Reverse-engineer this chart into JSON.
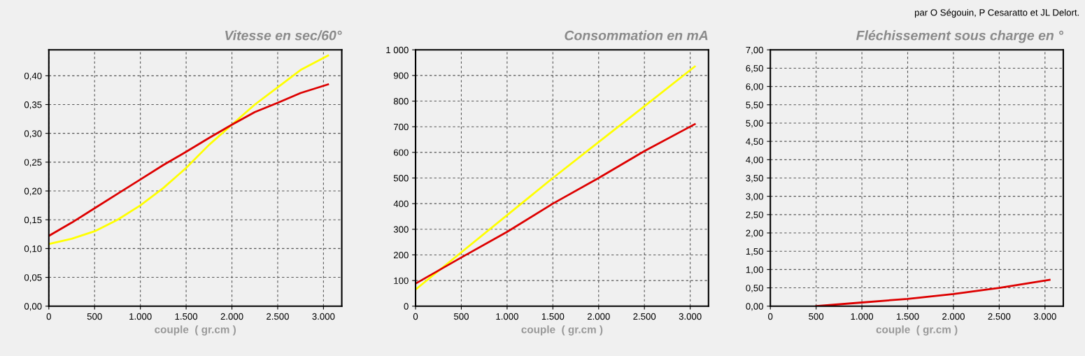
{
  "chart_data": [
    {
      "type": "line",
      "title": "Vitesse en sec/60°",
      "xlabel": "couple  ( gr.cm )",
      "grid": true,
      "line_style": "solid",
      "xlim": [
        0,
        3200
      ],
      "xticks": [
        0,
        {
          "value": 500,
          "label": "500"
        },
        {
          "value": 1000,
          "label": "1.000"
        },
        {
          "value": 1500,
          "label": "1.500"
        },
        {
          "value": 2000,
          "label": "2.000"
        },
        {
          "value": 2500,
          "label": "2.500"
        },
        {
          "value": 3000,
          "label": "3.000"
        }
      ],
      "ylim": [
        0,
        0.445
      ],
      "yticks": [
        {
          "value": 0,
          "label": "0,00"
        },
        {
          "value": 0.05,
          "label": "0,05"
        },
        {
          "value": 0.1,
          "label": "0,10"
        },
        {
          "value": 0.15,
          "label": "0,15"
        },
        {
          "value": 0.2,
          "label": "0,20"
        },
        {
          "value": 0.25,
          "label": "0,25"
        },
        {
          "value": 0.3,
          "label": "0,30"
        },
        {
          "value": 0.35,
          "label": "0,35"
        },
        {
          "value": 0.4,
          "label": "0,40"
        }
      ],
      "series": [
        {
          "color": "#ffff00",
          "x": [
            0,
            250,
            500,
            750,
            1000,
            1250,
            1500,
            1750,
            2000,
            2250,
            2500,
            2750,
            3050
          ],
          "values": [
            0.108,
            0.117,
            0.13,
            0.15,
            0.175,
            0.205,
            0.24,
            0.28,
            0.315,
            0.35,
            0.38,
            0.41,
            0.435
          ]
        },
        {
          "color": "#dd0000",
          "x": [
            0,
            250,
            500,
            750,
            1000,
            1250,
            1500,
            1750,
            2000,
            2250,
            2500,
            2750,
            3050
          ],
          "values": [
            0.122,
            0.145,
            0.17,
            0.195,
            0.22,
            0.245,
            0.268,
            0.292,
            0.315,
            0.337,
            0.353,
            0.37,
            0.385
          ]
        }
      ]
    },
    {
      "type": "line",
      "title": "Consommation en mA",
      "xlabel": "couple  ( gr.cm )",
      "grid": true,
      "line_style": "solid",
      "xlim": [
        0,
        3200
      ],
      "xticks": [
        0,
        {
          "value": 500,
          "label": "500"
        },
        {
          "value": 1000,
          "label": "1.000"
        },
        {
          "value": 1500,
          "label": "1.500"
        },
        {
          "value": 2000,
          "label": "2.000"
        },
        {
          "value": 2500,
          "label": "2.500"
        },
        {
          "value": 3000,
          "label": "3.000"
        }
      ],
      "ylim": [
        0,
        1000
      ],
      "yticks": [
        0,
        100,
        200,
        300,
        400,
        500,
        600,
        700,
        800,
        900,
        {
          "value": 1000,
          "label": "1 000"
        }
      ],
      "series": [
        {
          "color": "#ffff00",
          "x": [
            0,
            500,
            1000,
            1500,
            2000,
            2500,
            3050
          ],
          "values": [
            65,
            210,
            355,
            500,
            640,
            780,
            935
          ]
        },
        {
          "color": "#dd0000",
          "x": [
            0,
            500,
            1000,
            1500,
            2000,
            2500,
            3050
          ],
          "values": [
            88,
            190,
            290,
            400,
            500,
            605,
            710
          ]
        }
      ]
    },
    {
      "type": "line",
      "title": "Fléchissement sous charge en °",
      "xlabel": "couple  ( gr.cm )",
      "grid": true,
      "line_style": "solid",
      "annotations": [
        "par O Ségouin, P Cesaratto et JL Delort."
      ],
      "xlim": [
        0,
        3200
      ],
      "xticks": [
        0,
        {
          "value": 500,
          "label": "500"
        },
        {
          "value": 1000,
          "label": "1.000"
        },
        {
          "value": 1500,
          "label": "1.500"
        },
        {
          "value": 2000,
          "label": "2.000"
        },
        {
          "value": 2500,
          "label": "2.500"
        },
        {
          "value": 3000,
          "label": "3.000"
        }
      ],
      "ylim": [
        0,
        7
      ],
      "yticks": [
        {
          "value": 0,
          "label": "0,00"
        },
        {
          "value": 0.5,
          "label": "0,50"
        },
        {
          "value": 1,
          "label": "1,00"
        },
        {
          "value": 1.5,
          "label": "1,50"
        },
        {
          "value": 2,
          "label": "2,00"
        },
        {
          "value": 2.5,
          "label": "2,50"
        },
        {
          "value": 3,
          "label": "3,00"
        },
        {
          "value": 3.5,
          "label": "3,50"
        },
        {
          "value": 4,
          "label": "4,00"
        },
        {
          "value": 4.5,
          "label": "4,50"
        },
        {
          "value": 5,
          "label": "5,00"
        },
        {
          "value": 5.5,
          "label": "5,50"
        },
        {
          "value": 6,
          "label": "6,00"
        },
        {
          "value": 6.5,
          "label": "6,50"
        },
        {
          "value": 7,
          "label": "7,00"
        }
      ],
      "series": [
        {
          "color": "#dd0000",
          "x": [
            500,
            1000,
            1500,
            2000,
            2500,
            3050
          ],
          "values": [
            0,
            0.1,
            0.2,
            0.33,
            0.5,
            0.72
          ]
        }
      ]
    }
  ]
}
